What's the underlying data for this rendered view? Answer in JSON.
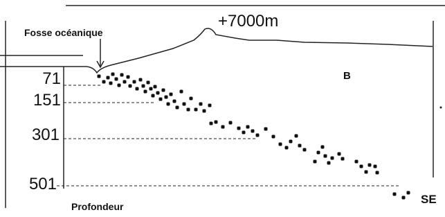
{
  "elevation_label": "+7000m",
  "trench_label": "Fosse océanique",
  "zone_label": "B",
  "depth_labels": [
    "71",
    "151",
    "301",
    "501"
  ],
  "axis_label": "Profondeur",
  "direction_label": "SE"
}
